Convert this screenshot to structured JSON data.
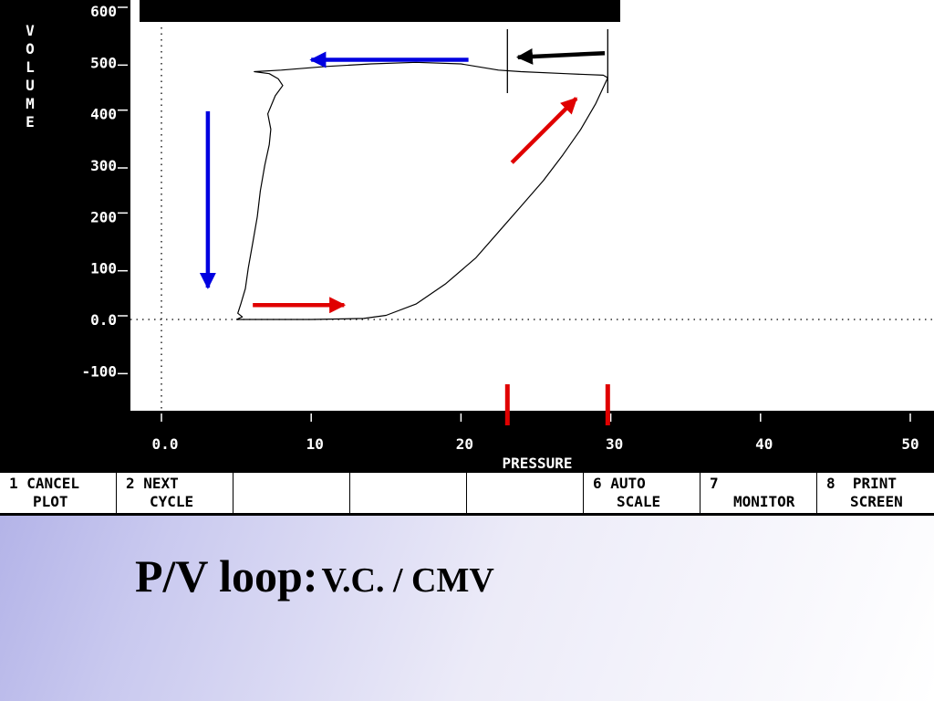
{
  "chart_data": {
    "type": "line",
    "ylabel": "VOLUME",
    "xlabel": "PRESSURE",
    "x_ticks": [
      "0.0",
      "10",
      "20",
      "30",
      "40",
      "50"
    ],
    "y_ticks": [
      "600",
      "500",
      "400",
      "300",
      "200",
      "100",
      "0.0",
      "-100"
    ],
    "xlim": [
      -0.5,
      50
    ],
    "ylim": [
      -115,
      610
    ],
    "series": [
      {
        "points": [
          [
            5.0,
            0
          ],
          [
            6,
            0
          ],
          [
            10,
            0
          ],
          [
            13.5,
            2
          ],
          [
            15,
            8
          ],
          [
            17,
            30
          ],
          [
            19,
            70
          ],
          [
            21,
            120
          ],
          [
            22.5,
            170
          ],
          [
            24,
            220
          ],
          [
            25.5,
            270
          ],
          [
            26.8,
            320
          ],
          [
            28,
            370
          ],
          [
            29,
            420
          ],
          [
            29.8,
            470
          ],
          [
            29.5,
            475
          ],
          [
            27,
            478
          ],
          [
            24,
            482
          ],
          [
            22.5,
            485
          ],
          [
            20,
            497
          ],
          [
            17,
            500
          ],
          [
            14,
            497
          ],
          [
            11,
            492
          ],
          [
            8,
            485
          ],
          [
            6.2,
            482
          ],
          [
            7.2,
            478
          ],
          [
            7.8,
            468
          ],
          [
            8.1,
            455
          ],
          [
            7.6,
            435
          ],
          [
            7.1,
            400
          ],
          [
            7.3,
            370
          ],
          [
            7.2,
            340
          ],
          [
            6.9,
            300
          ],
          [
            6.6,
            250
          ],
          [
            6.4,
            200
          ],
          [
            6.1,
            150
          ],
          [
            5.8,
            100
          ],
          [
            5.6,
            60
          ],
          [
            5.3,
            30
          ],
          [
            5.1,
            12
          ],
          [
            5.4,
            5
          ],
          [
            5.0,
            0
          ]
        ]
      }
    ],
    "grid": false,
    "reference_lines": {
      "x": 0,
      "y": 0,
      "style": "dotted"
    },
    "markers_x": [
      23.1,
      29.8
    ],
    "annotations": [
      {
        "type": "arrow",
        "color": "#e00000",
        "from": [
          6.1,
          28
        ],
        "to": [
          12.2,
          28
        ]
      },
      {
        "type": "arrow",
        "color": "#e00000",
        "from": [
          23.4,
          305
        ],
        "to": [
          27.7,
          430
        ]
      },
      {
        "type": "arrow",
        "color": "#0000e0",
        "from": [
          20.5,
          505
        ],
        "to": [
          10,
          505
        ]
      },
      {
        "type": "arrow",
        "color": "#0000e0",
        "from": [
          3.1,
          405
        ],
        "to": [
          3.1,
          62
        ]
      },
      {
        "type": "arrow",
        "color": "#000000",
        "from": [
          29.6,
          518
        ],
        "to": [
          23.8,
          510
        ]
      }
    ]
  },
  "buttons": [
    {
      "line1": "1 CANCEL",
      "line2": "PLOT"
    },
    {
      "line1": "2 NEXT",
      "line2": "CYCLE"
    },
    {
      "line1": "",
      "line2": ""
    },
    {
      "line1": "",
      "line2": ""
    },
    {
      "line1": "",
      "line2": ""
    },
    {
      "line1": "6 AUTO",
      "line2": "SCALE"
    },
    {
      "line1": "7",
      "line2": "MONITOR"
    },
    {
      "line1": "8  PRINT",
      "line2": "SCREEN"
    }
  ],
  "caption": {
    "main": "P/V loop:",
    "sub": "V.C. / CMV"
  },
  "colors": {
    "screen_bg": "#000000",
    "plot_bg": "#ffffff",
    "red": "#e00000",
    "blue": "#0000e0"
  }
}
